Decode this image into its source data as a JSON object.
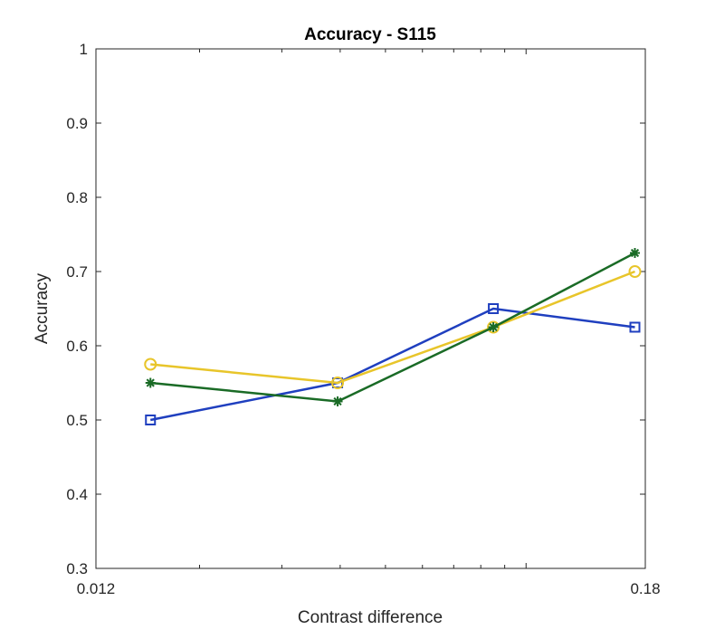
{
  "chart_data": {
    "type": "line",
    "title": "Accuracy - S115",
    "xlabel": "Contrast difference",
    "ylabel": "Accuracy",
    "xscale": "log",
    "xlim": [
      0.012,
      0.18
    ],
    "ylim": [
      0.3,
      1
    ],
    "xtick_labels": [
      "0.012",
      "0.18"
    ],
    "ytick_labels": [
      "0.3",
      "0.4",
      "0.5",
      "0.6",
      "0.7",
      "0.8",
      "0.9",
      "1"
    ],
    "grid": false,
    "legend": "none",
    "x": [
      0.0157,
      0.0395,
      0.0851,
      0.171
    ],
    "series": [
      {
        "marker": "square",
        "color": "#1f3fbf",
        "values": [
          0.5,
          0.55,
          0.65,
          0.625
        ]
      },
      {
        "marker": "circle",
        "color": "#e8c52a",
        "values": [
          0.575,
          0.55,
          0.625,
          0.7
        ]
      },
      {
        "marker": "asterisk",
        "color": "#1a6b26",
        "values": [
          0.55,
          0.525,
          0.625,
          0.725
        ]
      }
    ]
  }
}
